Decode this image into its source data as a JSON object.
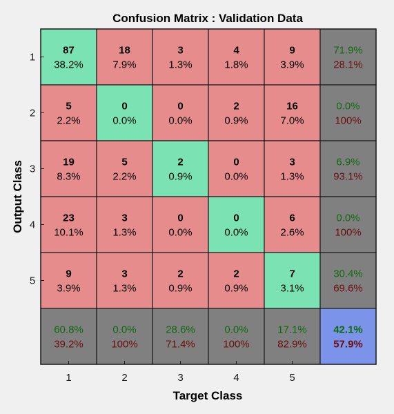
{
  "chart_data": {
    "type": "heatmap",
    "title": "Confusion Matrix : Validation Data",
    "xlabel": "Target Class",
    "ylabel": "Output Class",
    "x_tick_labels": [
      "1",
      "2",
      "3",
      "4",
      "5"
    ],
    "y_tick_labels": [
      "1",
      "2",
      "3",
      "4",
      "5"
    ],
    "matrix": {
      "counts": [
        [
          87,
          18,
          3,
          4,
          9
        ],
        [
          5,
          0,
          0,
          2,
          16
        ],
        [
          19,
          5,
          2,
          0,
          3
        ],
        [
          23,
          3,
          0,
          0,
          6
        ],
        [
          9,
          3,
          2,
          2,
          7
        ]
      ],
      "percents": [
        [
          "38.2%",
          "7.9%",
          "1.3%",
          "1.8%",
          "3.9%"
        ],
        [
          "2.2%",
          "0.0%",
          "0.0%",
          "0.9%",
          "7.0%"
        ],
        [
          "8.3%",
          "2.2%",
          "0.9%",
          "0.0%",
          "1.3%"
        ],
        [
          "10.1%",
          "1.3%",
          "0.0%",
          "0.0%",
          "2.6%"
        ],
        [
          "3.9%",
          "1.3%",
          "0.9%",
          "0.9%",
          "3.1%"
        ]
      ]
    },
    "row_summary": [
      {
        "correct": "71.9%",
        "incorrect": "28.1%"
      },
      {
        "correct": "0.0%",
        "incorrect": "100%"
      },
      {
        "correct": "6.9%",
        "incorrect": "93.1%"
      },
      {
        "correct": "0.0%",
        "incorrect": "100%"
      },
      {
        "correct": "30.4%",
        "incorrect": "69.6%"
      }
    ],
    "column_summary": [
      {
        "correct": "60.8%",
        "incorrect": "39.2%"
      },
      {
        "correct": "0.0%",
        "incorrect": "100%"
      },
      {
        "correct": "28.6%",
        "incorrect": "71.4%"
      },
      {
        "correct": "0.0%",
        "incorrect": "100%"
      },
      {
        "correct": "17.1%",
        "incorrect": "82.9%"
      }
    ],
    "overall": {
      "correct": "42.1%",
      "incorrect": "57.9%"
    },
    "colors": {
      "diagonal": "#7be3b3",
      "off_diagonal": "#e68c8c",
      "summary": "#808080",
      "overall": "#7b93e9",
      "correct_text": "#0d6b0d",
      "incorrect_text": "#6b0d0d",
      "background": "#f0f0f0"
    }
  }
}
